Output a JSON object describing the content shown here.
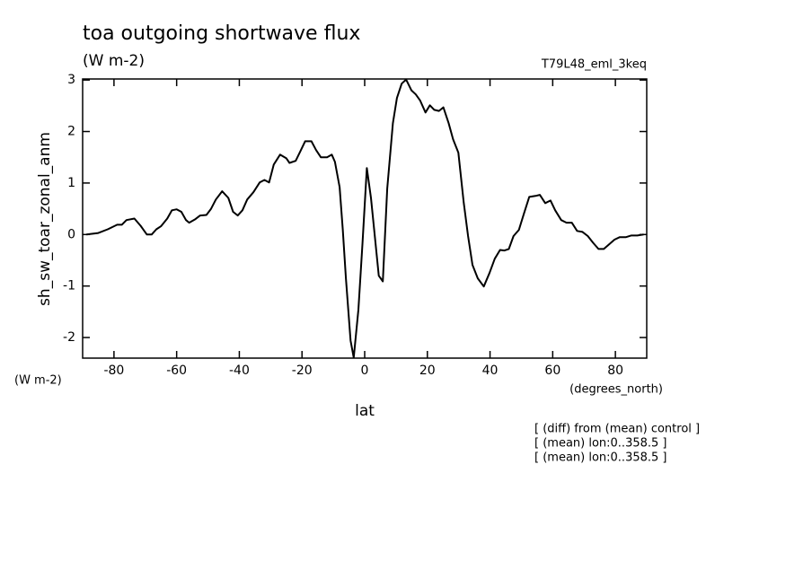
{
  "chart_data": {
    "type": "line",
    "title": "toa outgoing shortwave flux",
    "subtitle": "(W m-2)",
    "run_label": "T79L48_eml_3keq",
    "y_axis_label": "sh_sw_toar_zonal_anm",
    "y_units": "(W m-2)",
    "x_units": "(degrees_north)",
    "x_axis_label": "lat",
    "notes": [
      "[ (diff) from (mean) control ]",
      "[ (mean) lon:0..358.5 ]",
      "[ (mean) lon:0..358.5 ]"
    ],
    "xlim": [
      -90,
      90
    ],
    "ylim": [
      -2.4,
      3.02
    ],
    "xticks": [
      -80,
      -60,
      -40,
      -20,
      0,
      20,
      40,
      60,
      80
    ],
    "yticks": [
      -2,
      -1,
      0,
      1,
      2,
      3
    ],
    "color": "#000000",
    "x": [
      -88.8,
      -85,
      -82,
      -79,
      -77.5,
      -76,
      -73.5,
      -71.5,
      -69.5,
      -68,
      -66.5,
      -65,
      -63,
      -61.5,
      -60,
      -58.5,
      -57,
      -56,
      -54,
      -52.5,
      -50.5,
      -49,
      -47.5,
      -45.5,
      -43.5,
      -42,
      -40.5,
      -39,
      -37.5,
      -35.5,
      -33.5,
      -32,
      -30.5,
      -29,
      -27,
      -25,
      -24,
      -22,
      -20.5,
      -19,
      -17,
      -15.5,
      -14,
      -12,
      -10.5,
      -9.5,
      -8,
      -7,
      -6,
      -4.5,
      -3.5,
      -2,
      -0.7,
      0.7,
      2,
      3.3,
      4.5,
      5.8,
      7.2,
      9,
      10.3,
      11.8,
      13.2,
      14.9,
      16.3,
      17.7,
      19.4,
      20.8,
      22.2,
      23.7,
      25.1,
      26.8,
      28.2,
      29.9,
      31.6,
      33,
      34.4,
      36.1,
      38,
      39.8,
      41.5,
      43.2,
      44.6,
      46,
      47.5,
      49.2,
      50.8,
      52.5,
      54.5,
      55.9,
      57.6,
      59.3,
      60.8,
      62.7,
      64.4,
      66.1,
      67.8,
      69.5,
      71.2,
      72.9,
      74.6,
      76.3,
      78,
      79.7,
      81.4,
      83.4,
      85,
      87,
      89
    ],
    "values": [
      0,
      0.03,
      0.1,
      0.19,
      0.19,
      0.28,
      0.31,
      0.17,
      0,
      0,
      0.1,
      0.16,
      0.31,
      0.47,
      0.49,
      0.44,
      0.28,
      0.23,
      0.3,
      0.37,
      0.38,
      0.5,
      0.68,
      0.84,
      0.71,
      0.44,
      0.37,
      0.47,
      0.68,
      0.82,
      1.01,
      1.06,
      1.01,
      1.36,
      1.55,
      1.48,
      1.39,
      1.43,
      1.62,
      1.81,
      1.81,
      1.64,
      1.5,
      1.5,
      1.55,
      1.41,
      0.92,
      0.1,
      -0.85,
      -2.06,
      -2.39,
      -1.46,
      -0.16,
      1.29,
      0.71,
      -0.07,
      -0.8,
      -0.91,
      0.89,
      2.16,
      2.65,
      2.93,
      3.01,
      2.8,
      2.72,
      2.6,
      2.37,
      2.51,
      2.42,
      2.4,
      2.47,
      2.16,
      1.85,
      1.59,
      0.63,
      -0.03,
      -0.59,
      -0.85,
      -1.01,
      -0.75,
      -0.47,
      -0.3,
      -0.31,
      -0.28,
      -0.03,
      0.09,
      0.4,
      0.73,
      0.75,
      0.77,
      0.61,
      0.66,
      0.47,
      0.28,
      0.23,
      0.23,
      0.07,
      0.05,
      -0.03,
      -0.16,
      -0.28,
      -0.28,
      -0.19,
      -0.1,
      -0.05,
      -0.05,
      -0.02,
      -0.02,
      0
    ]
  }
}
